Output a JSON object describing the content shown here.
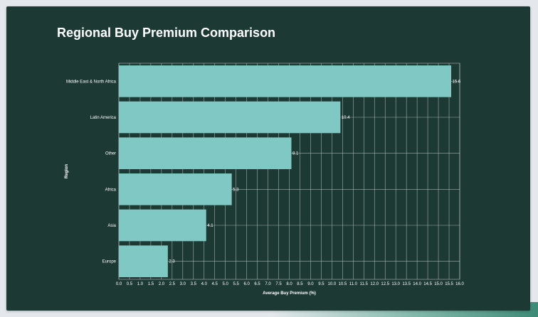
{
  "chart_data": {
    "type": "bar",
    "orientation": "horizontal",
    "title": "Regional Buy Premium Comparison",
    "xlabel": "Average Buy Premium (%)",
    "ylabel": "Region",
    "categories": [
      "Middle East & North Africa",
      "Latin America",
      "Other",
      "Africa",
      "Asia",
      "Europe"
    ],
    "values": [
      15.6,
      10.4,
      8.1,
      5.3,
      4.1,
      2.3
    ],
    "data_labels": [
      "15.6",
      "10.4",
      "8.1",
      "5.3",
      "4.1",
      "2.3"
    ],
    "xlim": [
      0,
      16
    ],
    "x_ticks": [
      "0.0",
      "0.5",
      "1.0",
      "1.5",
      "2.0",
      "2.5",
      "3.0",
      "3.5",
      "4.0",
      "4.5",
      "5.0",
      "5.5",
      "6.0",
      "6.5",
      "7.0",
      "7.5",
      "8.0",
      "8.5",
      "9.0",
      "9.5",
      "10.0",
      "10.5",
      "11.0",
      "11.5",
      "12.0",
      "12.5",
      "13.0",
      "13.5",
      "14.0",
      "14.5",
      "15.0",
      "15.5",
      "16.0"
    ],
    "grid": true,
    "colors": {
      "bar": "#80c8c3",
      "background": "#1d3934",
      "grid": "#cfd6d3",
      "text": "#ffffff"
    }
  }
}
